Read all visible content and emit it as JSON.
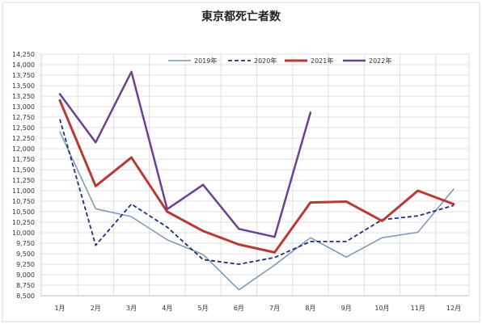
{
  "chart_data": {
    "type": "line",
    "title": "東京都死亡者数",
    "xlabel": "",
    "ylabel": "",
    "categories": [
      "1月",
      "2月",
      "3月",
      "4月",
      "5月",
      "6月",
      "7月",
      "8月",
      "9月",
      "10月",
      "11月",
      "12月"
    ],
    "ylim": [
      8500,
      14250
    ],
    "ytick_step": 250,
    "yticks": [
      "8,500",
      "8,750",
      "9,000",
      "9,250",
      "9,500",
      "9,750",
      "10,000",
      "10,250",
      "10,500",
      "10,750",
      "11,000",
      "11,250",
      "11,500",
      "11,750",
      "12,000",
      "12,250",
      "12,500",
      "12,750",
      "13,000",
      "13,250",
      "13,500",
      "13,750",
      "14,000",
      "14,250"
    ],
    "grid": true,
    "legend_position": "top",
    "series": [
      {
        "name": "2019年",
        "color": "#7b96b8",
        "style": "solid",
        "width": 1.5,
        "values": [
          12400,
          10570,
          10380,
          9830,
          9480,
          8640,
          9230,
          9880,
          9420,
          9880,
          10010,
          11040
        ]
      },
      {
        "name": "2020年",
        "color": "#1f2f7a",
        "style": "dashed",
        "width": 1.8,
        "values": [
          12700,
          9700,
          10680,
          10130,
          9360,
          9250,
          9410,
          9790,
          9790,
          10310,
          10400,
          10650
        ]
      },
      {
        "name": "2021年",
        "color": "#b83a35",
        "style": "solid",
        "width": 3,
        "values": [
          13150,
          11110,
          11790,
          10500,
          10040,
          9720,
          9530,
          10720,
          10740,
          10280,
          11000,
          10680
        ]
      },
      {
        "name": "2022年",
        "color": "#6a4290",
        "style": "solid",
        "width": 2.5,
        "values": [
          13300,
          12150,
          13830,
          10560,
          11140,
          10090,
          9900,
          12860,
          null,
          null,
          null,
          null
        ]
      }
    ]
  }
}
